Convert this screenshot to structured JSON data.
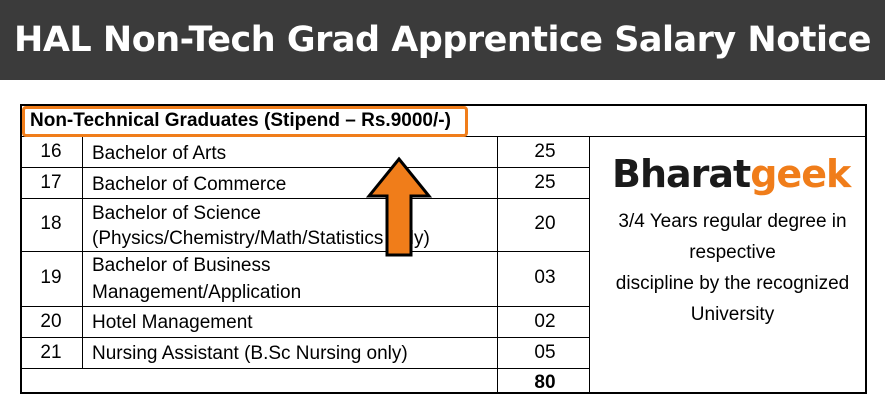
{
  "banner": {
    "title": "HAL Non-Tech Grad Apprentice Salary Notice"
  },
  "table": {
    "header": "Non-Technical Graduates (Stipend – Rs.9000/-)",
    "rows": [
      {
        "no": "16",
        "line1": "Bachelor of Arts",
        "line2": "",
        "seats": "25"
      },
      {
        "no": "17",
        "line1": "Bachelor of Commerce",
        "line2": "",
        "seats": "25"
      },
      {
        "no": "18",
        "line1": "Bachelor of Science",
        "line2": "(Physics/Chemistry/Math/Statistics only)",
        "seats": "20"
      },
      {
        "no": "19",
        "line1": "Bachelor of Business",
        "line2": "Management/Application",
        "seats": "03"
      },
      {
        "no": "20",
        "line1": "Hotel Management",
        "line2": "",
        "seats": "02"
      },
      {
        "no": "21",
        "line1": "Nursing Assistant (B.Sc Nursing only)",
        "line2": "",
        "seats": "05"
      }
    ],
    "total": "80"
  },
  "logo": {
    "part1": "Bharat",
    "part2": "geek"
  },
  "eligibility": {
    "line1": "3/4 Years regular degree in",
    "line2": "respective",
    "line3": "discipline by the  recognized",
    "line4": "University"
  },
  "colors": {
    "banner_bg": "#3b3b3b",
    "accent": "#f07d1a"
  },
  "icons": {
    "arrow": "up-arrow-icon"
  }
}
